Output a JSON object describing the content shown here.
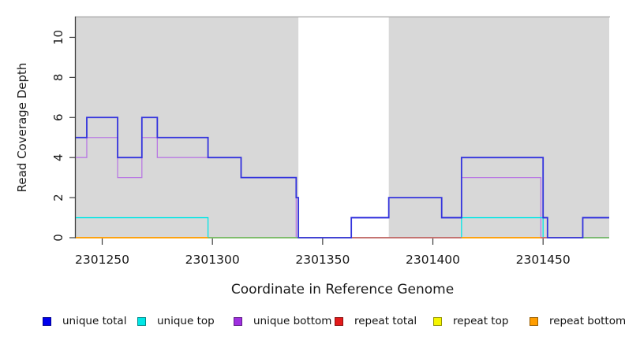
{
  "figure": {
    "kind": "genome-read-coverage-step-plot"
  },
  "chart_data": {
    "type": "line",
    "subtype": "step-after",
    "title": "",
    "xlabel": "Coordinate in Reference Genome",
    "ylabel": "Read Coverage Depth",
    "xlim": [
      2301238,
      2301480
    ],
    "ylim": [
      0,
      11
    ],
    "x_ticks": [
      2301250,
      2301300,
      2301350,
      2301400,
      2301450
    ],
    "y_ticks": [
      0,
      2,
      4,
      6,
      8,
      10
    ],
    "grid": false,
    "legend_position": "bottom",
    "panel_background": "#d8d8d8",
    "no_coverage_band": {
      "from": 2301339,
      "to": 2301380,
      "color": "#ffffff"
    },
    "series": [
      {
        "name": "repeat total",
        "color": "#e31a1a",
        "width": 1.2,
        "points": [
          [
            2301238,
            0
          ]
        ]
      },
      {
        "name": "repeat top",
        "color": "#f5f500",
        "width": 1.2,
        "points": [
          [
            2301238,
            0
          ]
        ]
      },
      {
        "name": "repeat bottom",
        "color": "#ff9d00",
        "width": 1.4,
        "points": [
          [
            2301238,
            0
          ]
        ]
      },
      {
        "name": "unique bottom",
        "color": "#b979e3",
        "width": 1.3,
        "points": [
          [
            2301238,
            4
          ],
          [
            2301243,
            5
          ],
          [
            2301257,
            3
          ],
          [
            2301268,
            5
          ],
          [
            2301275,
            4
          ],
          [
            2301298,
            4
          ],
          [
            2301313,
            3
          ],
          [
            2301338,
            0
          ],
          [
            2301363,
            1
          ],
          [
            2301380,
            2
          ],
          [
            2301404,
            1
          ],
          [
            2301413,
            3
          ],
          [
            2301449,
            0
          ]
        ]
      },
      {
        "name": "unique top",
        "color": "#00e6e6",
        "width": 1.3,
        "points": [
          [
            2301238,
            1
          ],
          [
            2301298,
            0
          ],
          [
            2301413,
            1
          ],
          [
            2301450,
            0
          ]
        ]
      },
      {
        "name": "unique total",
        "color": "#3333dd",
        "width": 1.8,
        "points": [
          [
            2301238,
            5
          ],
          [
            2301243,
            6
          ],
          [
            2301257,
            4
          ],
          [
            2301268,
            6
          ],
          [
            2301275,
            5
          ],
          [
            2301298,
            4
          ],
          [
            2301313,
            3
          ],
          [
            2301338,
            2
          ],
          [
            2301339,
            0
          ],
          [
            2301363,
            1
          ],
          [
            2301380,
            2
          ],
          [
            2301404,
            1
          ],
          [
            2301413,
            4
          ],
          [
            2301450,
            1
          ],
          [
            2301452,
            0
          ],
          [
            2301468,
            1
          ]
        ]
      }
    ],
    "baseline_overlay_segments": [
      {
        "from": 2301238,
        "to": 2301298,
        "color": "#ff9d00"
      },
      {
        "from": 2301298,
        "to": 2301339,
        "color": "#6cbb6c"
      },
      {
        "from": 2301363,
        "to": 2301413,
        "color": "#c75b72"
      },
      {
        "from": 2301413,
        "to": 2301449,
        "color": "#ff9d00"
      },
      {
        "from": 2301449,
        "to": 2301452,
        "color": "#c75b72"
      },
      {
        "from": 2301468,
        "to": 2301480,
        "color": "#6cbb6c"
      }
    ]
  },
  "legend": {
    "items": [
      {
        "label": "unique total",
        "color": "#0000ee"
      },
      {
        "label": "unique top",
        "color": "#00e6e6"
      },
      {
        "label": "unique bottom",
        "color": "#9f2fe0"
      },
      {
        "label": "repeat total",
        "color": "#e31a1a"
      },
      {
        "label": "repeat top",
        "color": "#f5f500"
      },
      {
        "label": "repeat bottom",
        "color": "#ff9d00"
      }
    ]
  },
  "axis_style": {
    "tick_color": "#3d3d3d",
    "label_color": "#1a1a1a",
    "top_border_color": "#a3a3a3",
    "left_axis_color": "#3d3d3d"
  }
}
